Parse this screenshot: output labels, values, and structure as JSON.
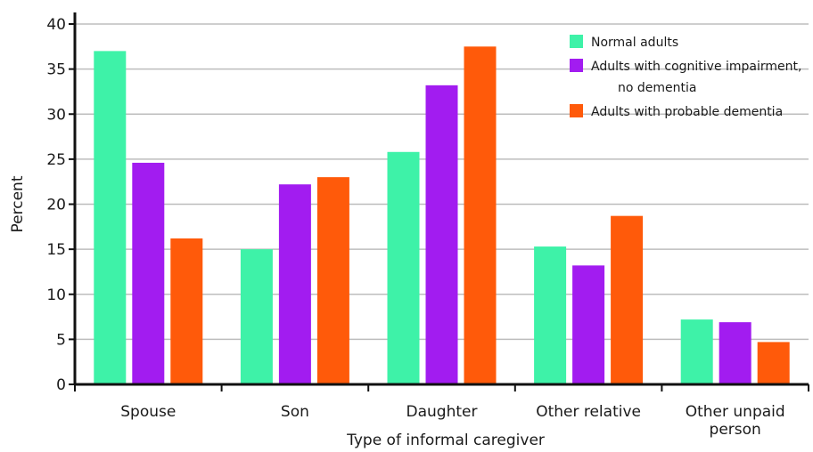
{
  "chart_data": {
    "type": "bar",
    "title": "",
    "xlabel": "Type of informal caregiver",
    "ylabel": "Percent",
    "ylim": [
      0,
      40
    ],
    "yticks": [
      0,
      5,
      10,
      15,
      20,
      25,
      30,
      35,
      40
    ],
    "grid": true,
    "legend_position": "top-right",
    "categories": [
      [
        "Spouse"
      ],
      [
        "Son"
      ],
      [
        "Daughter"
      ],
      [
        "Other relative"
      ],
      [
        "Other unpaid",
        "person"
      ]
    ],
    "series": [
      {
        "name": [
          "Normal adults"
        ],
        "color": "#3ef2a8",
        "values": [
          37.0,
          15.0,
          25.8,
          15.3,
          7.2
        ]
      },
      {
        "name": [
          "Adults with cognitive impairment,",
          "no dementia"
        ],
        "color": "#a21cf0",
        "values": [
          24.6,
          22.2,
          33.2,
          13.2,
          6.9
        ]
      },
      {
        "name": [
          "Adults with probable dementia"
        ],
        "color": "#ff5a0a",
        "values": [
          16.2,
          23.0,
          37.5,
          18.7,
          4.7
        ]
      }
    ]
  }
}
